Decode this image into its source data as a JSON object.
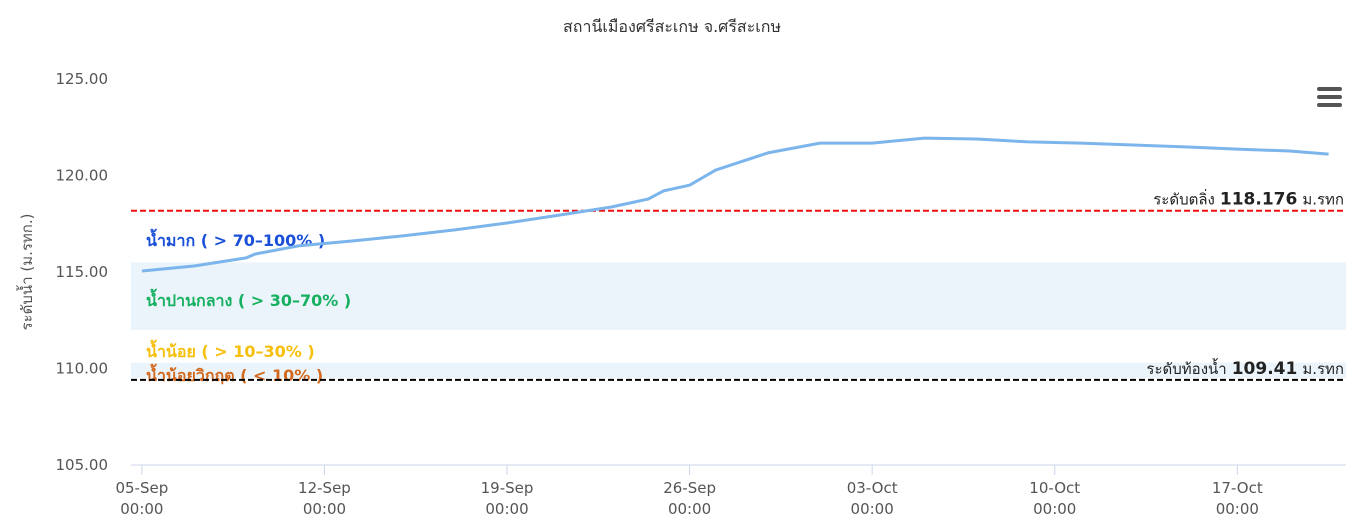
{
  "chart_data": {
    "type": "line",
    "title": "สถานีเมืองศรีสะเกษ จ.ศรีสะเกษ",
    "y_label": "ระดับน้ำ (ม.รทก.)",
    "ylim": [
      105,
      125
    ],
    "yticks": [
      {
        "value": 105,
        "label": "105.00"
      },
      {
        "value": 110,
        "label": "110.00"
      },
      {
        "value": 115,
        "label": "115.00"
      },
      {
        "value": 120,
        "label": "120.00"
      },
      {
        "value": 125,
        "label": "125.00"
      }
    ],
    "xlim": [
      "04-Sep 14:00",
      "21-Oct 04:00"
    ],
    "xticks": [
      "05-Sep 00:00",
      "12-Sep 00:00",
      "19-Sep 00:00",
      "26-Sep 00:00",
      "03-Oct 00:00",
      "10-Oct 00:00",
      "17-Oct 00:00"
    ],
    "series": [
      {
        "color": "#7cb5ec",
        "x": [
          "05-Sep 00:00",
          "07-Sep 00:00",
          "09-Sep 00:00",
          "09-Sep 08:00",
          "11-Sep 00:00",
          "13-Sep 00:00",
          "15-Sep 00:00",
          "17-Sep 00:00",
          "19-Sep 00:00",
          "21-Sep 00:00",
          "23-Sep 00:00",
          "24-Sep 10:00",
          "25-Sep 00:00",
          "26-Sep 00:00",
          "27-Sep 00:00",
          "29-Sep 00:00",
          "01-Oct 00:00",
          "03-Oct 00:00",
          "05-Oct 00:00",
          "07-Oct 00:00",
          "09-Oct 00:00",
          "11-Oct 00:00",
          "13-Oct 00:00",
          "15-Oct 00:00",
          "17-Oct 00:00",
          "19-Oct 00:00",
          "20-Oct 12:00"
        ],
        "values": [
          115.05,
          115.31,
          115.73,
          115.93,
          116.35,
          116.6,
          116.87,
          117.18,
          117.54,
          117.95,
          118.37,
          118.78,
          119.2,
          119.5,
          120.28,
          121.17,
          121.68,
          121.68,
          121.94,
          121.89,
          121.74,
          121.68,
          121.58,
          121.48,
          121.37,
          121.27,
          121.11
        ]
      }
    ],
    "plot_lines": [
      {
        "prefix": "ระดับตลิ่ง",
        "value": 118.176,
        "unit": "ม.รทก",
        "color": "#ee1111"
      },
      {
        "prefix": "ระดับท้องน้ำ",
        "value": 109.41,
        "unit": "ม.รทก",
        "color": "#000000"
      }
    ],
    "plot_bands": [
      {
        "from": 112,
        "to": 115.5,
        "color": "#ebf4fa"
      },
      {
        "from": 109.5,
        "to": 110.3,
        "color": "#ebf4fa"
      }
    ],
    "zones": [
      {
        "label": "น้ำมาก ( > 70–100% )",
        "color": "#1a4fd8"
      },
      {
        "label": "น้ำปานกลาง ( > 30–70% )",
        "color": "#15b060"
      },
      {
        "label": "น้ำน้อย ( > 10–30% )",
        "color": "#f5bf0c"
      },
      {
        "label": "น้ำน้อยวิกฤต ( < 10% )",
        "color": "#d2691e"
      }
    ]
  }
}
